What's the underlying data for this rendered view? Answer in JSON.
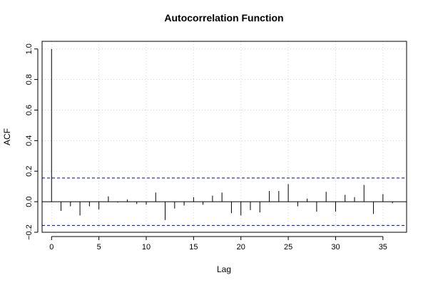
{
  "chart_data": {
    "type": "bar",
    "title": "Autocorrelation Function",
    "xlabel": "Lag",
    "ylabel": "ACF",
    "xlim": [
      -1,
      37.5
    ],
    "ylim": [
      -0.2,
      1.05
    ],
    "x_ticks": [
      0,
      5,
      10,
      15,
      20,
      25,
      30,
      35
    ],
    "y_ticks": [
      -0.2,
      0.0,
      0.2,
      0.4,
      0.6,
      0.8,
      1.0
    ],
    "y_tick_labels": [
      "−0.2",
      "0.0",
      "0.2",
      "0.4",
      "0.6",
      "0.8",
      "1.0"
    ],
    "grid": true,
    "confidence_bounds": [
      0.155,
      -0.155
    ],
    "confidence_color": "#0000cc",
    "grid_color": "#d3d3d3",
    "lags": [
      0,
      1,
      2,
      3,
      4,
      5,
      6,
      7,
      8,
      9,
      10,
      11,
      12,
      13,
      14,
      15,
      16,
      17,
      18,
      19,
      20,
      21,
      22,
      23,
      24,
      25,
      26,
      27,
      28,
      29,
      30,
      31,
      32,
      33,
      34,
      35,
      36
    ],
    "values": [
      1.0,
      -0.06,
      -0.03,
      -0.09,
      -0.03,
      -0.05,
      0.035,
      -0.005,
      0.015,
      -0.015,
      -0.02,
      0.06,
      -0.12,
      -0.045,
      -0.025,
      0.03,
      -0.02,
      0.04,
      0.06,
      -0.075,
      -0.09,
      -0.055,
      -0.07,
      0.07,
      0.07,
      0.115,
      -0.03,
      0.02,
      -0.065,
      0.065,
      -0.065,
      0.045,
      0.03,
      0.11,
      -0.08,
      0.05,
      -0.01
    ]
  }
}
